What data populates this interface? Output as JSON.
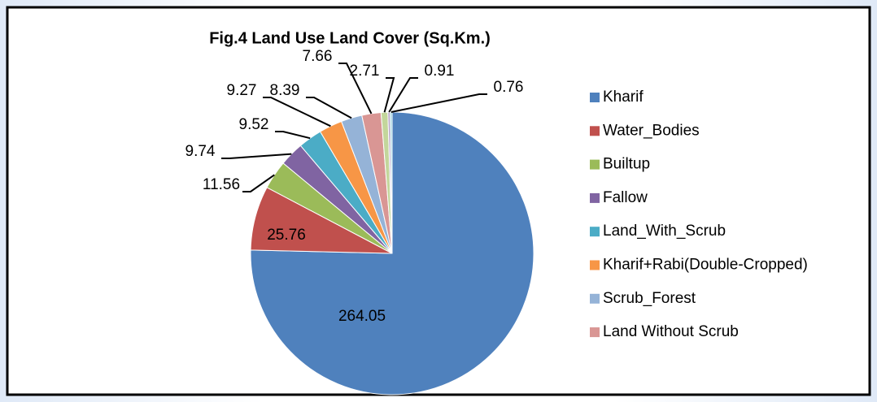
{
  "chart_data": {
    "type": "pie",
    "title": "Fig.4 Land Use Land Cover (Sq.Km.)",
    "categories": [
      "Kharif",
      "Water_Bodies",
      "Builtup",
      "Fallow",
      "Land_With_Scrub",
      "Kharif+Rabi(Double-Cropped)",
      "Scrub_Forest",
      "Land Without Scrub",
      null,
      null,
      null
    ],
    "values": [
      264.05,
      25.76,
      11.56,
      9.74,
      9.52,
      9.27,
      8.39,
      7.66,
      2.71,
      0.91,
      0.76
    ],
    "colors": [
      "#4f81bd",
      "#c0504d",
      "#9bbb59",
      "#8064a2",
      "#4bacc6",
      "#f79646",
      "#95b3d7",
      "#d99694",
      "#c3d69b",
      "#b2a2c7",
      "#92cddc"
    ],
    "legend": "right"
  }
}
